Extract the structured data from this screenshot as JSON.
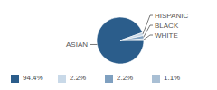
{
  "chart_data": {
    "type": "pie",
    "categories": [
      "ASIAN",
      "HISPANIC",
      "BLACK",
      "WHITE"
    ],
    "values": [
      94.4,
      2.2,
      2.2,
      1.1
    ],
    "value_labels": [
      "94.4%",
      "2.2%",
      "2.2%",
      "1.1%"
    ],
    "colors": [
      "#2b5d8b",
      "#c9d9e8",
      "#7fa0c0",
      "#a9bfd4"
    ],
    "legend": "bottom"
  }
}
